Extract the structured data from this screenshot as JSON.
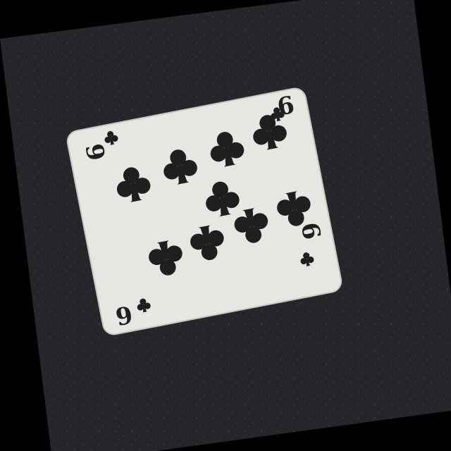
{
  "photo": {
    "subject": "playing-card",
    "rank": "9",
    "suit": "clubs",
    "pip_count": 9
  },
  "card": {
    "corner_rank_label": "9"
  },
  "colors": {
    "outer_border": "#000000",
    "mat": "#26262a",
    "mat_speckle": "#4a4a50",
    "card_face": "#e8e6e3",
    "card_shadow": "#c9c7c3",
    "ink": "#1f1f22"
  },
  "icons": {
    "pip": "club-icon",
    "corner_suit": "club-icon"
  }
}
